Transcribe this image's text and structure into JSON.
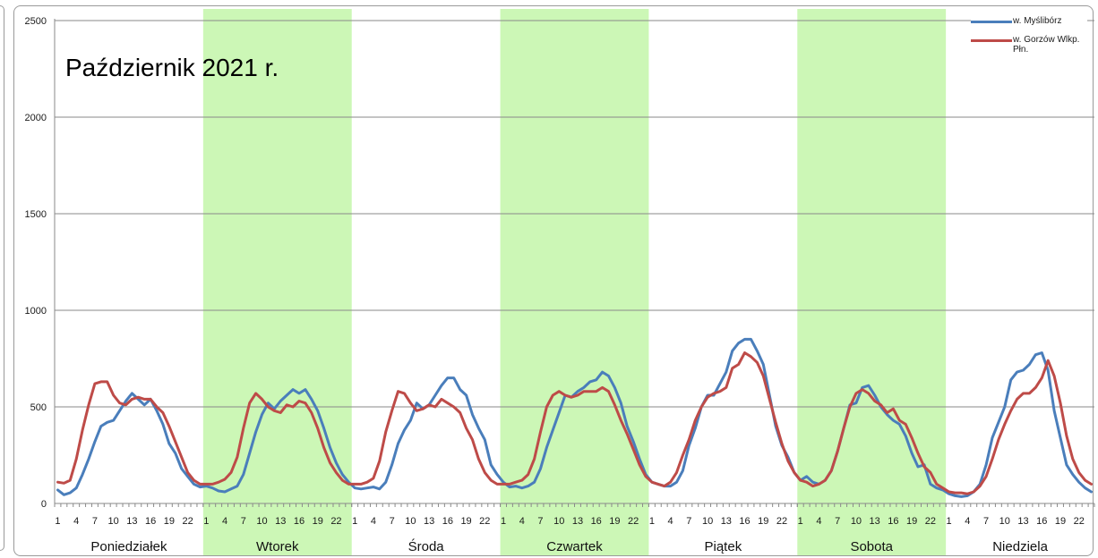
{
  "chart_data": {
    "type": "line",
    "title": "Październik 2021 r.",
    "xlabel": "",
    "ylabel": "",
    "ylim": [
      0,
      2500
    ],
    "y_ticks": [
      0,
      500,
      1000,
      1500,
      2000,
      2500
    ],
    "grid": true,
    "legend": "top-right",
    "days": [
      "Poniedziałek",
      "Wtorek",
      "Środa",
      "Czwartek",
      "Piątek",
      "Sobota",
      "Niedziela"
    ],
    "hour_ticks": [
      "1",
      "4",
      "7",
      "10",
      "13",
      "16",
      "19",
      "22"
    ],
    "shaded_days": [
      "Wtorek",
      "Czwartek",
      "Sobota"
    ],
    "series": [
      {
        "name": "w. Myślibórz",
        "color": "#4a7ebb",
        "values": [
          [
            70,
            45,
            55,
            80,
            150,
            230,
            320,
            400,
            420,
            430,
            480,
            530,
            570,
            540,
            510,
            540,
            480,
            410,
            310,
            260,
            180,
            140,
            100,
            85
          ],
          [
            90,
            80,
            65,
            60,
            75,
            90,
            150,
            260,
            370,
            460,
            520,
            490,
            530,
            560,
            590,
            570,
            590,
            540,
            480,
            390,
            290,
            210,
            150,
            110
          ],
          [
            80,
            75,
            80,
            85,
            75,
            110,
            200,
            310,
            380,
            430,
            520,
            490,
            510,
            560,
            610,
            650,
            650,
            590,
            560,
            460,
            390,
            330,
            200,
            150
          ],
          [
            110,
            85,
            90,
            80,
            90,
            110,
            180,
            290,
            380,
            470,
            560,
            550,
            580,
            600,
            630,
            640,
            680,
            660,
            600,
            520,
            400,
            320,
            230,
            150
          ],
          [
            110,
            100,
            90,
            90,
            110,
            170,
            300,
            390,
            500,
            560,
            560,
            620,
            680,
            790,
            830,
            850,
            850,
            790,
            720,
            560,
            400,
            300,
            240,
            160
          ],
          [
            120,
            140,
            110,
            100,
            120,
            170,
            270,
            390,
            510,
            520,
            600,
            610,
            560,
            500,
            460,
            430,
            410,
            350,
            260,
            190,
            200,
            100,
            80,
            70
          ],
          [
            50,
            40,
            35,
            40,
            60,
            100,
            200,
            340,
            420,
            500,
            640,
            680,
            690,
            720,
            770,
            780,
            690,
            480,
            340,
            200,
            150,
            110,
            80,
            60
          ]
        ]
      },
      {
        "name": "w. Gorzów Wlkp. Płn.",
        "color": "#be4b48",
        "values": [
          [
            110,
            105,
            120,
            230,
            380,
            510,
            620,
            630,
            630,
            560,
            520,
            510,
            540,
            550,
            540,
            540,
            500,
            470,
            400,
            320,
            240,
            160,
            120,
            100
          ],
          [
            100,
            100,
            110,
            125,
            160,
            240,
            390,
            520,
            570,
            540,
            500,
            480,
            470,
            510,
            500,
            530,
            520,
            470,
            390,
            290,
            210,
            160,
            120,
            100
          ],
          [
            100,
            100,
            110,
            130,
            220,
            370,
            480,
            580,
            570,
            520,
            480,
            490,
            510,
            500,
            540,
            520,
            500,
            470,
            390,
            330,
            230,
            160,
            120,
            100
          ],
          [
            100,
            100,
            110,
            120,
            150,
            230,
            370,
            500,
            560,
            580,
            560,
            550,
            560,
            580,
            580,
            580,
            600,
            580,
            510,
            430,
            360,
            280,
            200,
            140
          ],
          [
            110,
            100,
            90,
            110,
            160,
            250,
            330,
            430,
            500,
            550,
            570,
            580,
            600,
            700,
            720,
            780,
            760,
            730,
            660,
            540,
            420,
            310,
            220,
            160
          ],
          [
            120,
            110,
            90,
            100,
            120,
            170,
            270,
            390,
            500,
            570,
            590,
            570,
            530,
            510,
            470,
            490,
            430,
            410,
            340,
            260,
            190,
            160,
            100,
            80
          ],
          [
            60,
            55,
            55,
            50,
            60,
            90,
            140,
            230,
            330,
            410,
            480,
            540,
            570,
            570,
            600,
            650,
            740,
            660,
            520,
            350,
            230,
            160,
            120,
            100
          ]
        ]
      }
    ]
  }
}
